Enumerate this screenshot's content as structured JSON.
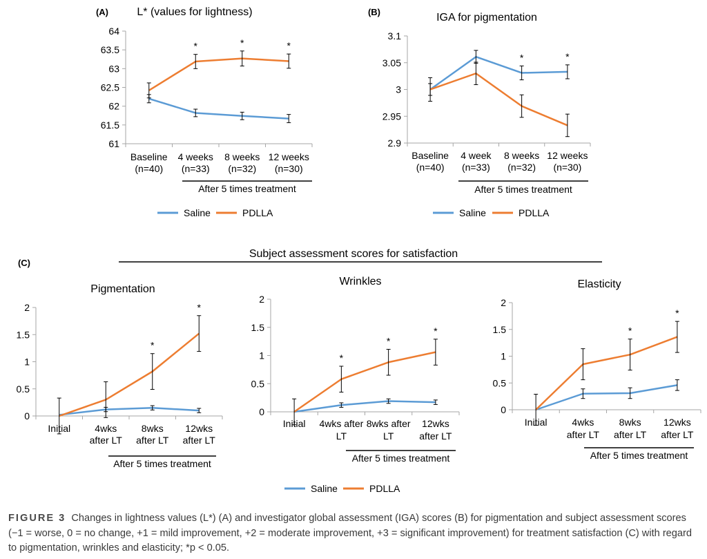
{
  "colors": {
    "saline": "#5b9bd5",
    "pdlla": "#ed7d31",
    "axis": "#a6a6a6",
    "error": "#000000"
  },
  "legend_items": [
    "Saline",
    "PDLLA"
  ],
  "section_c_title": "Subject assessment scores for satisfaction",
  "caption": {
    "figure_label": "FIGURE 3",
    "text": "Changes in lightness values (L*) (A) and investigator global assessment (IGA) scores (B) for pigmentation and subject assessment scores (−1 = worse, 0 = no change, +1 = mild improvement, +2 = moderate improvement, +3 = significant improvement) for treatment satisfaction (C) with regard to pigmentation, wrinkles and elasticity; *p < 0.05."
  },
  "chart_data": [
    {
      "panel": "(A)",
      "type": "line",
      "title": "L* (values for lightness)",
      "categories": [
        [
          "Baseline",
          "(n=40)"
        ],
        [
          "4 weeks",
          "(n=33)"
        ],
        [
          "8 weeks",
          "(n=32)"
        ],
        [
          "12 weeks",
          "(n=30)"
        ]
      ],
      "group_label": "After 5 times treatment",
      "ylim": [
        61,
        64
      ],
      "yticks": [
        "61",
        "61.5",
        "62",
        "62.5",
        "63",
        "63.5",
        "64"
      ],
      "series": [
        {
          "name": "Saline",
          "values": [
            62.2,
            61.82,
            61.74,
            61.67
          ],
          "errors": [
            0.11,
            0.1,
            0.1,
            0.11
          ]
        },
        {
          "name": "PDLLA",
          "values": [
            62.42,
            63.19,
            63.27,
            63.2
          ],
          "errors": [
            0.2,
            0.19,
            0.2,
            0.19
          ]
        }
      ],
      "significance": [
        "",
        "*",
        "*",
        "*"
      ]
    },
    {
      "panel": "(B)",
      "type": "line",
      "title": "IGA for pigmentation",
      "categories": [
        [
          "Baseline",
          "(n=40)"
        ],
        [
          "4 week",
          "(n=33)"
        ],
        [
          "8 weeks",
          "(n=32)"
        ],
        [
          "12 weeks",
          "(n=30)"
        ]
      ],
      "group_label": "After 5 times treatment",
      "ylim": [
        2.9,
        3.1
      ],
      "yticks": [
        "2.9",
        "2.95",
        "3",
        "3.05",
        "3.1"
      ],
      "series": [
        {
          "name": "Saline",
          "values": [
            3.0,
            3.061,
            3.031,
            3.033
          ],
          "errors": [
            0.011,
            0.012,
            0.013,
            0.013
          ]
        },
        {
          "name": "PDLLA",
          "values": [
            3.0,
            3.03,
            2.969,
            2.933
          ],
          "errors": [
            0.022,
            0.021,
            0.021,
            0.021
          ]
        }
      ],
      "significance": [
        "",
        "",
        "*",
        "*"
      ]
    },
    {
      "panel": "(C)",
      "type": "line",
      "title": "Pigmentation",
      "categories": [
        [
          "Initial"
        ],
        [
          "4wks",
          "after LT"
        ],
        [
          "8wks",
          "after LT"
        ],
        [
          "12wks",
          "after LT"
        ]
      ],
      "group_label": "After 5 times treatment",
      "ylim": [
        0,
        2
      ],
      "yticks": [
        "0",
        "0.5",
        "1",
        "1.5",
        "2"
      ],
      "series": [
        {
          "name": "Saline",
          "values": [
            0.02,
            0.12,
            0.15,
            0.1
          ],
          "errors": [
            0.0,
            0.04,
            0.04,
            0.04
          ]
        },
        {
          "name": "PDLLA",
          "values": [
            0.0,
            0.3,
            0.82,
            1.52
          ],
          "errors": [
            0.33,
            0.33,
            0.33,
            0.33
          ]
        }
      ],
      "significance": [
        "",
        "",
        "*",
        "*"
      ]
    },
    {
      "panel": "",
      "type": "line",
      "title": "Wrinkles",
      "categories": [
        [
          "Initial"
        ],
        [
          "4wks after",
          "LT"
        ],
        [
          "8wks after",
          "LT"
        ],
        [
          "12wks",
          "after LT"
        ]
      ],
      "group_label": "After 5 times treatment",
      "ylim": [
        0,
        2
      ],
      "yticks": [
        "0",
        "0.5",
        "1",
        "1.5",
        "2"
      ],
      "series": [
        {
          "name": "Saline",
          "values": [
            0.0,
            0.12,
            0.19,
            0.17
          ],
          "errors": [
            0.0,
            0.04,
            0.04,
            0.04
          ]
        },
        {
          "name": "PDLLA",
          "values": [
            0.0,
            0.58,
            0.88,
            1.06
          ],
          "errors": [
            0.23,
            0.23,
            0.23,
            0.23
          ]
        }
      ],
      "significance": [
        "",
        "*",
        "*",
        "*"
      ]
    },
    {
      "panel": "",
      "type": "line",
      "title": "Elasticity",
      "categories": [
        [
          "Initial"
        ],
        [
          "4wks",
          "after LT"
        ],
        [
          "8wks",
          "after LT"
        ],
        [
          "12wks",
          "after LT"
        ]
      ],
      "group_label": "After 5 times treatment",
      "ylim": [
        0,
        2
      ],
      "yticks": [
        "0",
        "0.5",
        "1",
        "1.5",
        "2"
      ],
      "series": [
        {
          "name": "Saline",
          "values": [
            0.0,
            0.3,
            0.31,
            0.46
          ],
          "errors": [
            0.0,
            0.09,
            0.1,
            0.1
          ]
        },
        {
          "name": "PDLLA",
          "values": [
            0.0,
            0.85,
            1.03,
            1.36
          ],
          "errors": [
            0.29,
            0.29,
            0.29,
            0.29
          ]
        }
      ],
      "significance": [
        "",
        "",
        "*",
        "*"
      ]
    }
  ]
}
